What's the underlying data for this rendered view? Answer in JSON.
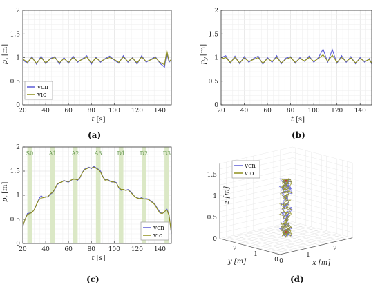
{
  "colors": {
    "vcn": "#5b5bd6",
    "vio": "#8f8f1a",
    "band": "#dbe8c6",
    "phase_text": "#6a9a54"
  },
  "chart_data": [
    {
      "id": "a",
      "type": "line",
      "caption": "(a)",
      "ylabel": "p_x [m]",
      "ylabel_main": "p",
      "ylabel_sub": "x",
      "ylabel_unit": "[m]",
      "xlabel_main": "t",
      "xlabel_unit": "[s]",
      "xlim": [
        20,
        150
      ],
      "ylim": [
        0,
        2
      ],
      "xticks": [
        "20",
        "40",
        "60",
        "80",
        "100",
        "120",
        "140"
      ],
      "yticks": [
        "0",
        "0.5",
        "1",
        "1.5",
        "2"
      ],
      "grid": true,
      "legend": {
        "placement": "bottom-left",
        "entries": [
          "vcn",
          "vio"
        ]
      },
      "series": [
        {
          "name": "vcn",
          "x": [
            20,
            24,
            28,
            32,
            36,
            40,
            44,
            48,
            52,
            56,
            60,
            64,
            68,
            72,
            76,
            80,
            84,
            88,
            92,
            96,
            100,
            104,
            108,
            112,
            116,
            120,
            124,
            128,
            132,
            136,
            140,
            144,
            146,
            148,
            150
          ],
          "values": [
            0.95,
            0.88,
            1.02,
            0.86,
            1.03,
            0.87,
            0.98,
            1.02,
            0.86,
            1.0,
            0.88,
            1.03,
            0.9,
            0.97,
            1.04,
            0.86,
            1.01,
            0.9,
            0.98,
            1.03,
            0.95,
            0.88,
            1.04,
            0.9,
            1.0,
            0.86,
            1.04,
            0.9,
            0.96,
            1.02,
            0.88,
            0.8,
            1.1,
            0.9,
            0.95
          ]
        },
        {
          "name": "vio",
          "x": [
            20,
            24,
            28,
            32,
            36,
            40,
            44,
            48,
            52,
            56,
            60,
            64,
            68,
            72,
            76,
            80,
            84,
            88,
            92,
            96,
            100,
            104,
            108,
            112,
            116,
            120,
            124,
            128,
            132,
            136,
            140,
            144,
            146,
            148,
            150
          ],
          "values": [
            0.97,
            0.9,
            1.0,
            0.88,
            1.0,
            0.89,
            0.97,
            1.0,
            0.89,
            0.98,
            0.9,
            1.0,
            0.92,
            0.96,
            1.01,
            0.89,
            0.99,
            0.92,
            0.97,
            1.0,
            0.96,
            0.9,
            1.01,
            0.92,
            0.99,
            0.89,
            1.01,
            0.92,
            0.95,
            1.0,
            0.9,
            0.85,
            1.15,
            0.92,
            0.96
          ]
        }
      ]
    },
    {
      "id": "b",
      "type": "line",
      "caption": "(b)",
      "ylabel": "p_y [m]",
      "ylabel_main": "p",
      "ylabel_sub": "y",
      "ylabel_unit": "[m]",
      "xlabel_main": "t",
      "xlabel_unit": "[s]",
      "xlim": [
        20,
        150
      ],
      "ylim": [
        0,
        2
      ],
      "xticks": [
        "20",
        "40",
        "60",
        "80",
        "100",
        "120",
        "140"
      ],
      "yticks": [
        "0",
        "0.5",
        "1",
        "1.5",
        "2"
      ],
      "grid": true,
      "legend": null,
      "series": [
        {
          "name": "vcn",
          "x": [
            20,
            24,
            28,
            32,
            36,
            40,
            44,
            48,
            52,
            56,
            60,
            64,
            68,
            72,
            76,
            80,
            84,
            88,
            92,
            96,
            100,
            104,
            108,
            112,
            116,
            120,
            124,
            128,
            132,
            136,
            140,
            144,
            148,
            150
          ],
          "values": [
            1.0,
            1.04,
            0.88,
            1.03,
            0.87,
            1.02,
            0.9,
            0.98,
            1.03,
            0.86,
            1.0,
            0.9,
            1.04,
            0.87,
            0.99,
            1.02,
            0.88,
            1.0,
            0.92,
            1.03,
            0.9,
            1.0,
            1.18,
            0.9,
            1.17,
            0.88,
            1.04,
            0.9,
            1.02,
            0.87,
            1.0,
            0.9,
            0.98,
            0.86
          ]
        },
        {
          "name": "vio",
          "x": [
            20,
            24,
            28,
            32,
            36,
            40,
            44,
            48,
            52,
            56,
            60,
            64,
            68,
            72,
            76,
            80,
            84,
            88,
            92,
            96,
            100,
            104,
            108,
            112,
            116,
            120,
            124,
            128,
            132,
            136,
            140,
            144,
            148,
            150
          ],
          "values": [
            0.97,
            1.0,
            0.9,
            1.0,
            0.89,
            0.99,
            0.92,
            0.96,
            1.0,
            0.88,
            0.98,
            0.92,
            1.0,
            0.89,
            0.97,
            1.0,
            0.9,
            0.98,
            0.93,
            1.0,
            0.92,
            0.98,
            1.06,
            0.92,
            1.05,
            0.9,
            1.0,
            0.92,
            0.99,
            0.89,
            0.98,
            0.92,
            0.96,
            0.88
          ]
        }
      ]
    },
    {
      "id": "c",
      "type": "line",
      "caption": "(c)",
      "ylabel": "p_z [m]",
      "ylabel_main": "p",
      "ylabel_sub": "z",
      "ylabel_unit": "[m]",
      "xlabel_main": "t",
      "xlabel_unit": "[s]",
      "xlim": [
        20,
        150
      ],
      "ylim": [
        0,
        2
      ],
      "xticks": [
        "20",
        "40",
        "60",
        "80",
        "100",
        "120",
        "140"
      ],
      "yticks": [
        "0",
        "0.5",
        "1",
        "1.5",
        "2"
      ],
      "grid": true,
      "legend": {
        "placement": "bottom-right",
        "entries": [
          "vcn",
          "vio"
        ]
      },
      "phases": [
        {
          "label": "S0",
          "x": [
            24,
            28
          ]
        },
        {
          "label": "A1",
          "x": [
            44,
            48
          ]
        },
        {
          "label": "A2",
          "x": [
            64,
            68
          ]
        },
        {
          "label": "A3",
          "x": [
            84,
            88
          ]
        },
        {
          "label": "D1",
          "x": [
            104,
            108
          ]
        },
        {
          "label": "D2",
          "x": [
            124,
            128
          ]
        },
        {
          "label": "D3",
          "x": [
            144,
            148
          ]
        }
      ],
      "series": [
        {
          "name": "vcn",
          "x": [
            20,
            22,
            24,
            26,
            28,
            30,
            32,
            34,
            36,
            38,
            40,
            42,
            44,
            46,
            48,
            50,
            52,
            54,
            56,
            58,
            60,
            62,
            64,
            66,
            68,
            70,
            72,
            74,
            76,
            78,
            80,
            82,
            84,
            86,
            88,
            90,
            92,
            94,
            96,
            98,
            100,
            102,
            104,
            106,
            108,
            110,
            112,
            114,
            116,
            118,
            120,
            122,
            124,
            126,
            128,
            130,
            132,
            134,
            136,
            138,
            140,
            142,
            144,
            146,
            148,
            150
          ],
          "values": [
            0.35,
            0.5,
            0.62,
            0.63,
            0.64,
            0.7,
            0.8,
            0.92,
            0.99,
            0.95,
            0.97,
            0.96,
            1.02,
            1.05,
            1.12,
            1.22,
            1.25,
            1.27,
            1.31,
            1.28,
            1.27,
            1.3,
            1.34,
            1.33,
            1.31,
            1.36,
            1.47,
            1.54,
            1.56,
            1.58,
            1.55,
            1.6,
            1.57,
            1.54,
            1.5,
            1.39,
            1.32,
            1.33,
            1.3,
            1.27,
            1.28,
            1.26,
            1.15,
            1.1,
            1.12,
            1.1,
            1.12,
            1.08,
            1.03,
            0.97,
            0.95,
            0.93,
            0.95,
            0.92,
            0.93,
            0.92,
            0.88,
            0.85,
            0.8,
            0.72,
            0.65,
            0.62,
            0.65,
            0.72,
            0.6,
            0.2
          ]
        },
        {
          "name": "vio",
          "x": [
            20,
            22,
            24,
            26,
            28,
            30,
            32,
            34,
            36,
            38,
            40,
            42,
            44,
            46,
            48,
            50,
            52,
            54,
            56,
            58,
            60,
            62,
            64,
            66,
            68,
            70,
            72,
            74,
            76,
            78,
            80,
            82,
            84,
            86,
            88,
            90,
            92,
            94,
            96,
            98,
            100,
            102,
            104,
            106,
            108,
            110,
            112,
            114,
            116,
            118,
            120,
            122,
            124,
            126,
            128,
            130,
            132,
            134,
            136,
            138,
            140,
            142,
            144,
            146,
            148,
            150
          ],
          "values": [
            0.36,
            0.5,
            0.6,
            0.62,
            0.64,
            0.7,
            0.81,
            0.9,
            0.94,
            0.95,
            0.96,
            0.97,
            1.03,
            1.06,
            1.13,
            1.23,
            1.26,
            1.27,
            1.3,
            1.29,
            1.28,
            1.31,
            1.33,
            1.33,
            1.32,
            1.37,
            1.46,
            1.53,
            1.55,
            1.57,
            1.56,
            1.58,
            1.56,
            1.53,
            1.48,
            1.38,
            1.31,
            1.32,
            1.29,
            1.28,
            1.27,
            1.25,
            1.16,
            1.12,
            1.12,
            1.1,
            1.11,
            1.07,
            1.02,
            0.97,
            0.94,
            0.93,
            0.94,
            0.92,
            0.92,
            0.91,
            0.87,
            0.84,
            0.79,
            0.7,
            0.63,
            0.62,
            0.66,
            0.7,
            0.58,
            0.22
          ]
        }
      ]
    },
    {
      "id": "d",
      "type": "line",
      "caption": "(d)",
      "subtype": "3d-trajectory",
      "xlabel": "x [m]",
      "ylabel": "y [m]",
      "zlabel": "z [m]",
      "xticks": [
        "0",
        "1",
        "2"
      ],
      "yticks": [
        "0",
        "1",
        "2"
      ],
      "zticks": [
        "0",
        "0.5",
        "1",
        "1.5"
      ],
      "grid": true,
      "legend": {
        "placement": "top-left",
        "entries": [
          "vcn",
          "vio"
        ]
      }
    }
  ]
}
